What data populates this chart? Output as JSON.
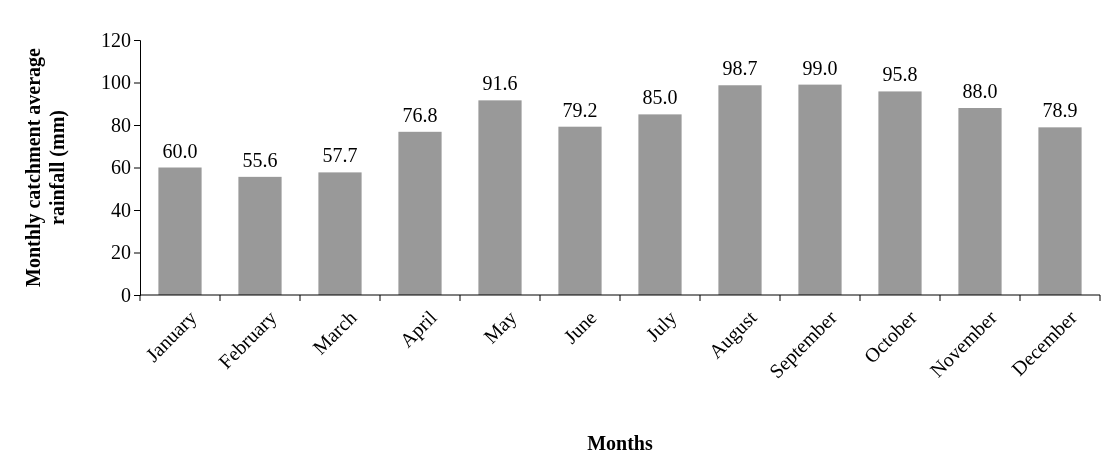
{
  "chart_data": {
    "type": "bar",
    "xlabel": "Months",
    "ylabel": "Monthly catchment average rainfall (mm)",
    "categories": [
      "January",
      "February",
      "March",
      "April",
      "May",
      "June",
      "July",
      "August",
      "September",
      "October",
      "November",
      "December"
    ],
    "values": [
      60.0,
      55.6,
      57.7,
      76.8,
      91.6,
      79.2,
      85.0,
      98.7,
      99.0,
      95.8,
      88.0,
      78.9
    ],
    "value_labels": [
      "60.0",
      "55.6",
      "57.7",
      "76.8",
      "91.6",
      "79.2",
      "85.0",
      "98.7",
      "99.0",
      "95.8",
      "88.0",
      "78.9"
    ],
    "color": "#999999",
    "ylim": [
      0,
      120
    ],
    "yticks": [
      0,
      20,
      40,
      60,
      80,
      100,
      120
    ],
    "grid": false
  }
}
